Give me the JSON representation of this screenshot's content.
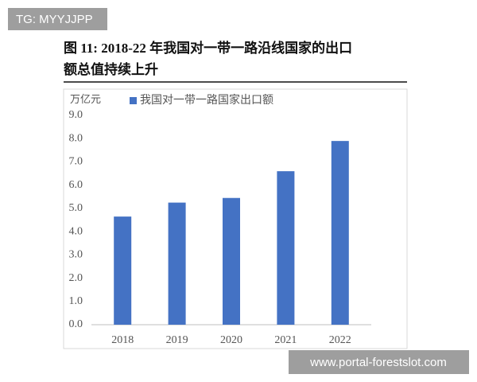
{
  "watermarks": [
    "TG: MYYJJPP",
    "www.portal-forestslot.com"
  ],
  "chart_data": {
    "type": "bar",
    "title": [
      "图 11:  2018-22 年我国对一带一路沿线国家的出口",
      "额总值持续上升"
    ],
    "y_unit": "万亿元",
    "categories": [
      "2018",
      "2019",
      "2020",
      "2021",
      "2022"
    ],
    "series": [
      {
        "name": "我国对一带一路国家出口额",
        "color": "#4472c4",
        "values": [
          4.65,
          5.25,
          5.45,
          6.6,
          7.9
        ]
      }
    ],
    "ylim": [
      0,
      9
    ],
    "yticks": [
      {
        "value": 0,
        "label": "0.0"
      },
      {
        "value": 1,
        "label": "1.0"
      },
      {
        "value": 2,
        "label": "2.0"
      },
      {
        "value": 3,
        "label": "3.0"
      },
      {
        "value": 4,
        "label": "4.0"
      },
      {
        "value": 5,
        "label": "5.0"
      },
      {
        "value": 6,
        "label": "6.0"
      },
      {
        "value": 7,
        "label": "7.0"
      },
      {
        "value": 8,
        "label": "8.0"
      },
      {
        "value": 9,
        "label": "9.0"
      }
    ],
    "grid": false
  }
}
